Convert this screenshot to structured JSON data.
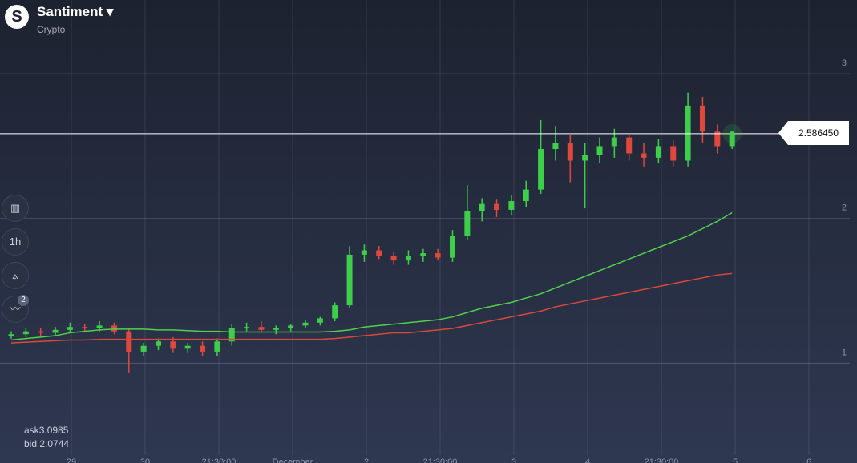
{
  "header": {
    "title": "Santiment",
    "subtitle": "Crypto"
  },
  "toolbar": {
    "timeframe": "1h",
    "indicator_count": "2"
  },
  "quote": {
    "ask_label": "ask",
    "ask": "3.0985",
    "bid_label": "bid",
    "bid": "2.0744"
  },
  "chart_data": {
    "type": "candlestick",
    "up_color": "#3ecf4a",
    "down_color": "#e0483c",
    "ylim": [
      0.31,
      3.51
    ],
    "yticks": [
      1,
      2,
      3
    ],
    "grid": true,
    "xticks": [
      "29",
      "30",
      "21:30:00",
      "December",
      "2",
      "21:30:00",
      "3",
      "4",
      "21:30:00",
      "5",
      "6"
    ],
    "current_price": {
      "value": 2.58645,
      "label": "2.586450"
    },
    "open": [
      1.19,
      1.2,
      1.22,
      1.21,
      1.23,
      1.25,
      1.24,
      1.26,
      1.22,
      1.08,
      1.12,
      1.15,
      1.1,
      1.12,
      1.08,
      1.15,
      1.24,
      1.25,
      1.23,
      1.24,
      1.26,
      1.28,
      1.31,
      1.4,
      1.75,
      1.78,
      1.74,
      1.71,
      1.74,
      1.76,
      1.73,
      1.88,
      2.05,
      2.1,
      2.06,
      2.12,
      2.2,
      2.48,
      2.52,
      2.4,
      2.44,
      2.5,
      2.56,
      2.45,
      2.42,
      2.5,
      2.4,
      2.78,
      2.6,
      2.5
    ],
    "high": [
      1.22,
      1.24,
      1.24,
      1.25,
      1.28,
      1.27,
      1.29,
      1.28,
      1.24,
      1.14,
      1.17,
      1.18,
      1.14,
      1.15,
      1.17,
      1.27,
      1.28,
      1.29,
      1.26,
      1.27,
      1.3,
      1.32,
      1.42,
      1.81,
      1.82,
      1.81,
      1.77,
      1.78,
      1.79,
      1.79,
      1.92,
      2.23,
      2.14,
      2.13,
      2.16,
      2.26,
      2.68,
      2.64,
      2.58,
      2.52,
      2.56,
      2.62,
      2.58,
      2.52,
      2.55,
      2.54,
      2.87,
      2.84,
      2.65,
      2.6
    ],
    "low": [
      1.17,
      1.18,
      1.19,
      1.19,
      1.21,
      1.22,
      1.22,
      1.2,
      0.93,
      1.05,
      1.09,
      1.07,
      1.07,
      1.05,
      1.05,
      1.12,
      1.22,
      1.21,
      1.2,
      1.22,
      1.24,
      1.26,
      1.29,
      1.38,
      1.7,
      1.72,
      1.68,
      1.68,
      1.7,
      1.71,
      1.7,
      1.85,
      1.98,
      2.01,
      2.02,
      2.08,
      2.17,
      2.4,
      2.25,
      2.07,
      2.38,
      2.42,
      2.4,
      2.36,
      2.38,
      2.36,
      2.36,
      2.52,
      2.45,
      2.48
    ],
    "close": [
      1.2,
      1.22,
      1.21,
      1.23,
      1.25,
      1.24,
      1.26,
      1.22,
      1.08,
      1.12,
      1.15,
      1.1,
      1.12,
      1.08,
      1.15,
      1.24,
      1.25,
      1.23,
      1.24,
      1.26,
      1.28,
      1.31,
      1.4,
      1.75,
      1.78,
      1.74,
      1.71,
      1.74,
      1.76,
      1.73,
      1.88,
      2.05,
      2.1,
      2.06,
      2.12,
      2.2,
      2.48,
      2.52,
      2.4,
      2.44,
      2.5,
      2.56,
      2.45,
      2.42,
      2.5,
      2.4,
      2.78,
      2.6,
      2.5,
      2.586
    ],
    "series": [
      {
        "color": "#4fd14a",
        "values": [
          1.16,
          1.17,
          1.18,
          1.19,
          1.21,
          1.22,
          1.23,
          1.235,
          1.235,
          1.235,
          1.23,
          1.23,
          1.225,
          1.22,
          1.22,
          1.215,
          1.215,
          1.215,
          1.215,
          1.215,
          1.215,
          1.215,
          1.22,
          1.23,
          1.25,
          1.26,
          1.27,
          1.28,
          1.29,
          1.3,
          1.32,
          1.35,
          1.38,
          1.4,
          1.42,
          1.45,
          1.48,
          1.52,
          1.56,
          1.6,
          1.64,
          1.68,
          1.72,
          1.76,
          1.8,
          1.84,
          1.88,
          1.93,
          1.98,
          2.04
        ]
      },
      {
        "color": "#d9483a",
        "values": [
          1.14,
          1.145,
          1.15,
          1.155,
          1.16,
          1.16,
          1.165,
          1.165,
          1.165,
          1.165,
          1.165,
          1.165,
          1.165,
          1.165,
          1.165,
          1.165,
          1.165,
          1.165,
          1.165,
          1.165,
          1.165,
          1.165,
          1.17,
          1.18,
          1.19,
          1.2,
          1.21,
          1.21,
          1.22,
          1.23,
          1.24,
          1.26,
          1.28,
          1.3,
          1.32,
          1.34,
          1.36,
          1.39,
          1.41,
          1.43,
          1.45,
          1.47,
          1.49,
          1.51,
          1.53,
          1.55,
          1.57,
          1.59,
          1.61,
          1.62
        ]
      }
    ]
  }
}
